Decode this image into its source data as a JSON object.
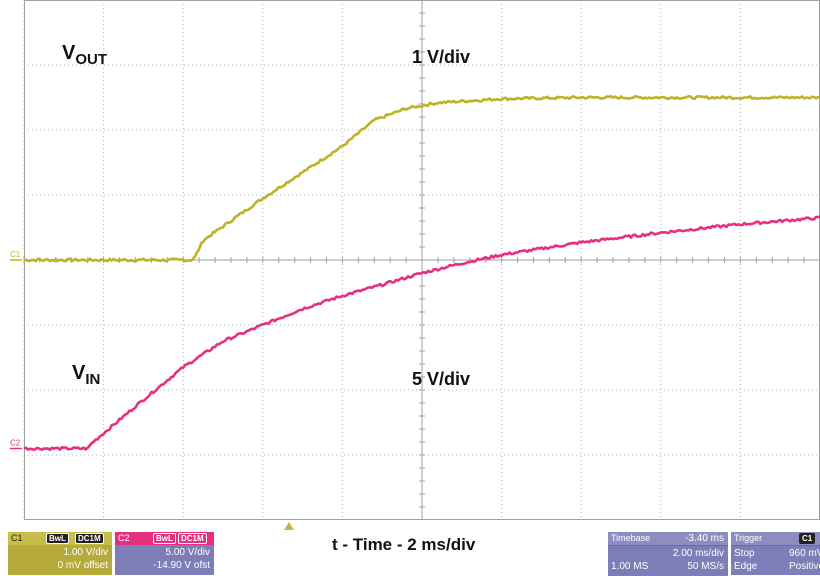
{
  "channels": [
    {
      "id": "C1",
      "coupling": [
        "BwL",
        "DC1M"
      ],
      "scale": "1.00 V/div",
      "offset": "0 mV offset",
      "color": "#bfb227",
      "trace_label_main": "V",
      "trace_label_sub": "OUT",
      "scale_annotation": "1 V/div"
    },
    {
      "id": "C2",
      "coupling": [
        "BwL",
        "DC1M"
      ],
      "scale": "5.00 V/div",
      "offset": "-14.90 V ofst",
      "color": "#e6307f",
      "trace_label_main": "V",
      "trace_label_sub": "IN",
      "scale_annotation": "5 V/div"
    }
  ],
  "x_axis_caption": "t - Time - 2 ms/div",
  "timebase": {
    "label": "Timebase",
    "position": "-3.40 ms",
    "scale": "2.00 ms/div",
    "samples": "1.00 MS",
    "rate": "50 MS/s"
  },
  "trigger": {
    "label": "Trigger",
    "channel_badge": "C1",
    "mode": "Stop",
    "level": "960 mV",
    "type": "Edge",
    "slope": "Positive"
  },
  "chart_data": {
    "type": "line",
    "xlabel": "t - Time - 2 ms/div",
    "x_unit": "div",
    "y_unit": "div",
    "xlim": [
      0,
      10
    ],
    "ylim": [
      0,
      8
    ],
    "grid": true,
    "series": [
      {
        "name": "VOUT",
        "color": "#bfb227",
        "x": [
          0,
          2.1,
          2.15,
          2.25,
          3.0,
          4.0,
          4.4,
          4.8,
          5.2,
          6.0,
          7.0,
          8.0,
          10.0
        ],
        "y": [
          4.0,
          4.0,
          4.05,
          4.3,
          4.95,
          5.75,
          6.15,
          6.33,
          6.42,
          6.48,
          6.5,
          6.5,
          6.5
        ]
      },
      {
        "name": "VIN",
        "color": "#e6307f",
        "x": [
          0,
          0.8,
          0.85,
          1.5,
          2.0,
          2.5,
          3.0,
          3.5,
          4.0,
          4.5,
          5.0,
          5.5,
          6.0,
          7.0,
          8.0,
          9.0,
          10.0
        ],
        "y": [
          1.1,
          1.1,
          1.18,
          1.85,
          2.35,
          2.75,
          3.0,
          3.25,
          3.45,
          3.62,
          3.8,
          3.95,
          4.08,
          4.27,
          4.42,
          4.55,
          4.65
        ]
      }
    ]
  }
}
